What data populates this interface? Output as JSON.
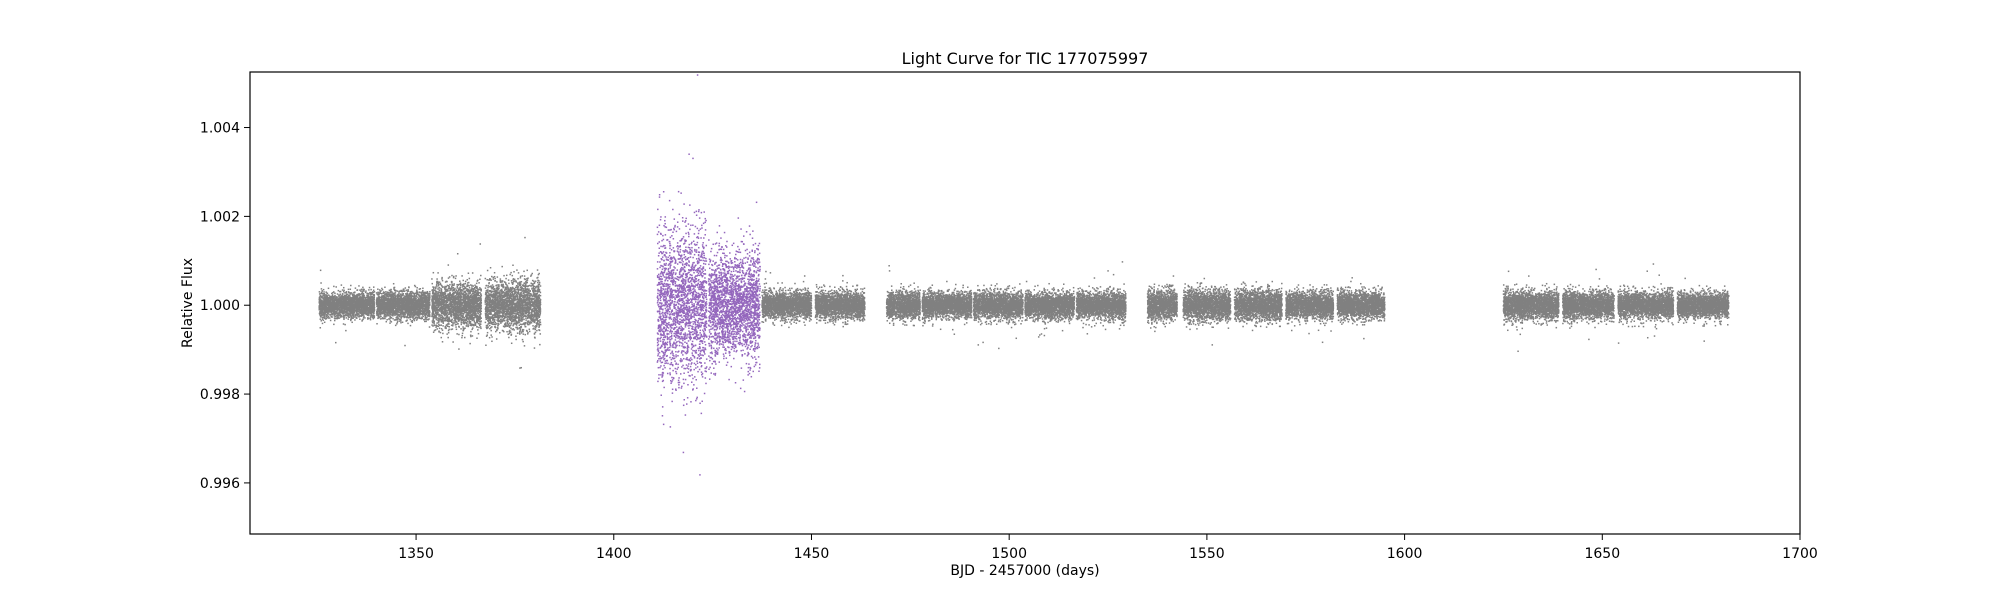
{
  "chart_data": {
    "type": "scatter",
    "title": "Light Curve for TIC 177075997",
    "xlabel": "BJD - 2457000 (days)",
    "ylabel": "Relative Flux",
    "xlim": [
      1308,
      1700
    ],
    "ylim": [
      0.99485,
      1.00525
    ],
    "xticks": [
      1350,
      1400,
      1450,
      1500,
      1550,
      1600,
      1650,
      1700
    ],
    "yticks": [
      0.996,
      0.998,
      1.0,
      1.002,
      1.004
    ],
    "xtick_labels": [
      "1350",
      "1400",
      "1450",
      "1500",
      "1550",
      "1600",
      "1650",
      "1700"
    ],
    "ytick_labels": [
      "0.996",
      "0.998",
      "1.000",
      "1.002",
      "1.004"
    ],
    "grid": false,
    "legend": "none",
    "series": [
      {
        "color": "#808080",
        "center": 1.0,
        "segments": [
          {
            "x0": 1325.5,
            "x1": 1339.5,
            "sigma": 0.00014
          },
          {
            "x0": 1340.0,
            "x1": 1353.5,
            "sigma": 0.00015
          },
          {
            "x0": 1354.0,
            "x1": 1366.5,
            "sigma": 0.00025
          },
          {
            "x0": 1367.5,
            "x1": 1381.5,
            "sigma": 0.00028
          },
          {
            "x0": 1437.5,
            "x1": 1450.0,
            "sigma": 0.00015
          },
          {
            "x0": 1451.0,
            "x1": 1463.5,
            "sigma": 0.00015
          },
          {
            "x0": 1469.0,
            "x1": 1477.5,
            "sigma": 0.00015
          },
          {
            "x0": 1478.0,
            "x1": 1490.5,
            "sigma": 0.00014
          },
          {
            "x0": 1491.0,
            "x1": 1503.5,
            "sigma": 0.00015
          },
          {
            "x0": 1504.0,
            "x1": 1516.5,
            "sigma": 0.00015
          },
          {
            "x0": 1517.0,
            "x1": 1529.5,
            "sigma": 0.00015
          },
          {
            "x0": 1535.0,
            "x1": 1542.5,
            "sigma": 0.00017
          },
          {
            "x0": 1544.0,
            "x1": 1556.0,
            "sigma": 0.00017
          },
          {
            "x0": 1557.0,
            "x1": 1569.0,
            "sigma": 0.00017
          },
          {
            "x0": 1570.0,
            "x1": 1582.0,
            "sigma": 0.00015
          },
          {
            "x0": 1583.0,
            "x1": 1595.0,
            "sigma": 0.00015
          },
          {
            "x0": 1625.0,
            "x1": 1639.0,
            "sigma": 0.00016
          },
          {
            "x0": 1640.0,
            "x1": 1653.0,
            "sigma": 0.00015
          },
          {
            "x0": 1654.0,
            "x1": 1668.0,
            "sigma": 0.00015
          },
          {
            "x0": 1669.0,
            "x1": 1682.0,
            "sigma": 0.00014
          }
        ]
      },
      {
        "color": "#9467bd",
        "center": 1.0,
        "segments": [
          {
            "x0": 1411.0,
            "x1": 1423.5,
            "sigma": 0.00085
          },
          {
            "x0": 1424.0,
            "x1": 1437.0,
            "sigma": 0.0006
          }
        ]
      }
    ]
  }
}
